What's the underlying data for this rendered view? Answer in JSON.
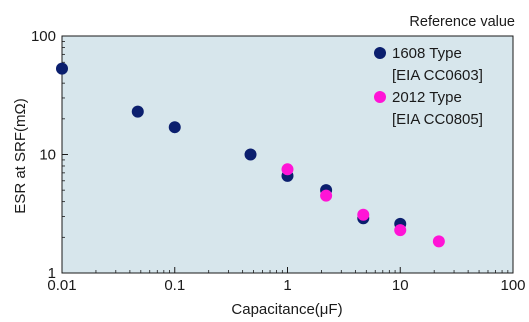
{
  "chart_data": {
    "type": "scatter",
    "annotation": "Reference value",
    "xlabel": "Capacitance(μF)",
    "ylabel": "ESR at SRF(mΩ)",
    "x_scale": "log",
    "y_scale": "log",
    "xlim": [
      0.01,
      100
    ],
    "ylim": [
      1,
      100
    ],
    "x_ticks": [
      "0.01",
      "0.1",
      "1",
      "10",
      "100"
    ],
    "y_ticks": [
      "1",
      "10",
      "100"
    ],
    "grid": false,
    "plot_background": "#d7e6ec",
    "legend_position": "top-right",
    "series": [
      {
        "name": "1608 Type",
        "name_line2": "[EIA CC0603]",
        "color": "#0b1f6e",
        "points": [
          {
            "x": 0.01,
            "y": 53
          },
          {
            "x": 0.047,
            "y": 23
          },
          {
            "x": 0.1,
            "y": 17
          },
          {
            "x": 0.47,
            "y": 10
          },
          {
            "x": 1,
            "y": 6.6
          },
          {
            "x": 2.2,
            "y": 5
          },
          {
            "x": 4.7,
            "y": 2.9
          },
          {
            "x": 10,
            "y": 2.6
          }
        ]
      },
      {
        "name": "2012 Type",
        "name_line2": "[EIA CC0805]",
        "color": "#ff14d6",
        "points": [
          {
            "x": 1,
            "y": 7.5
          },
          {
            "x": 2.2,
            "y": 4.5
          },
          {
            "x": 4.7,
            "y": 3.1
          },
          {
            "x": 10,
            "y": 2.3
          },
          {
            "x": 22,
            "y": 1.85
          }
        ]
      }
    ]
  }
}
